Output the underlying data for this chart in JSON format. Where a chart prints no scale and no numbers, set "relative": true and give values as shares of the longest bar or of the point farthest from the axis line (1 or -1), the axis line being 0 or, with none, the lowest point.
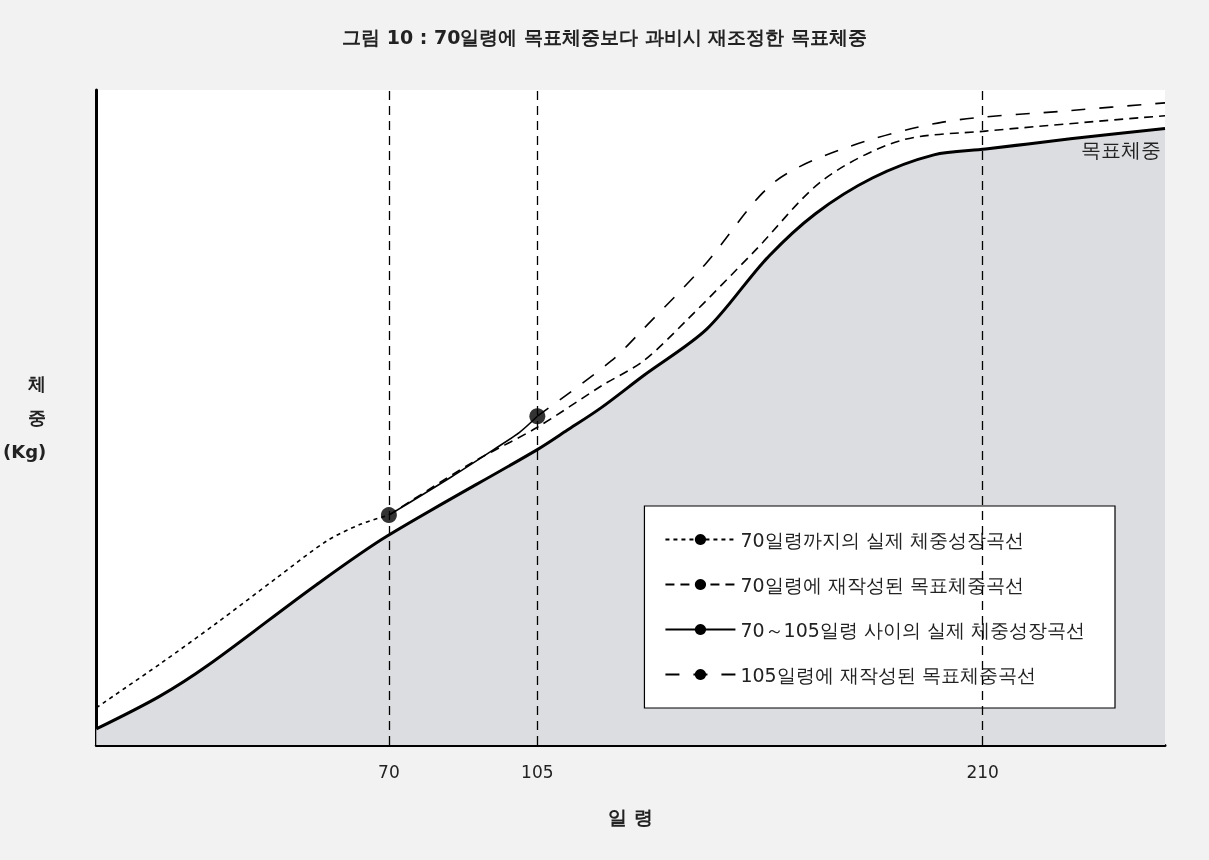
{
  "chart_data": {
    "type": "line",
    "title": "그림 10 : 70일령에 목표체중보다 과비시 재조정한 목표체중",
    "xlabel": "일 령",
    "ylabel": "체\n중\n(Kg)",
    "relative": true,
    "xlim": [
      1,
      253
    ],
    "xticks": [
      70,
      105,
      210
    ],
    "legend": "bottom right",
    "grid": false,
    "ref_lines": [
      {
        "axis": "x",
        "value": 70,
        "line_style": "dashed",
        "color": "#000000"
      },
      {
        "axis": "x",
        "value": 105,
        "line_style": "dashed",
        "color": "#000000"
      },
      {
        "axis": "x",
        "value": 210,
        "line_style": "dashed",
        "color": "#000000"
      }
    ],
    "series": [
      {
        "name": "목표체중",
        "type": "area",
        "color": "#000000",
        "line_style": "solid",
        "x": [
          1,
          15.7,
          27.5,
          53,
          69.5,
          105,
          112,
          120,
          130,
          145,
          159,
          170.5,
          184,
          198.5,
          210.7,
          230.7,
          253
        ],
        "values": [
          0.025,
          0.075,
          0.125,
          0.25,
          0.325,
          0.46,
          0.49,
          0.525,
          0.575,
          0.648,
          0.757,
          0.827,
          0.883,
          0.919,
          0.928,
          0.944,
          0.96
        ]
      },
      {
        "name": "70일령까지의 실제 체중성장곡선",
        "color": "#000000",
        "line_style": "dotted",
        "x": [
          1,
          16.4,
          29.4,
          43.5,
          55.4,
          63.4,
          70
        ],
        "values": [
          0.058,
          0.128,
          0.19,
          0.26,
          0.318,
          0.344,
          0.358
        ]
      },
      {
        "name": "70일령에 재작성된 목표체중곡선",
        "color": "#000000",
        "line_style": "dashed",
        "x": [
          70,
          89.7,
          104.8,
          120.3,
          130,
          140,
          156.5,
          172.4,
          190.5,
          210.7,
          253
        ],
        "values": [
          0.358,
          0.44,
          0.494,
          0.56,
          0.598,
          0.66,
          0.771,
          0.88,
          0.941,
          0.956,
          0.98
        ]
      },
      {
        "name": "70～105일령 사이의 실제 체중성장곡선",
        "color": "#000000",
        "line_style": "solid",
        "x": [
          70,
          84.6,
          94.7,
          100.8,
          105
        ],
        "values": [
          0.358,
          0.417,
          0.46,
          0.487,
          0.512
        ]
      },
      {
        "name": "105일령에 재작성된 목표체중곡선",
        "color": "#000000",
        "line_style": "longdash",
        "x": [
          105,
          122.4,
          130,
          144.5,
          160.4,
          176.4,
          200.6,
          230.7,
          253
        ],
        "values": [
          0.512,
          0.598,
          0.648,
          0.748,
          0.874,
          0.927,
          0.97,
          0.988,
          1.0
        ]
      },
      {
        "type": "scatter",
        "color": "#000000",
        "marker": "circle",
        "x": [
          70,
          105
        ],
        "values": [
          0.358,
          0.512
        ]
      }
    ]
  }
}
